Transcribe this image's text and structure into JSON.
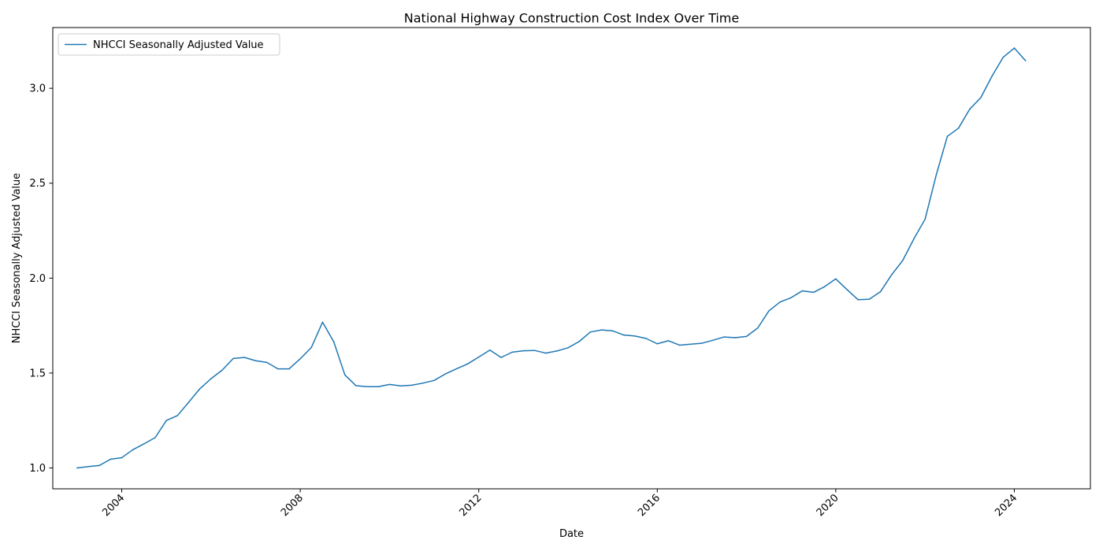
{
  "chart_data": {
    "type": "line",
    "title": "National Highway Construction Cost Index Over Time",
    "xlabel": "Date",
    "ylabel": "NHCCI Seasonally Adjusted Value",
    "xlim": [
      "2002-06-15",
      "2025-09-15"
    ],
    "ylim": [
      0.89,
      3.32
    ],
    "x_ticks": [
      "2004",
      "2008",
      "2012",
      "2016",
      "2020",
      "2024"
    ],
    "y_ticks": [
      "1.0",
      "1.5",
      "2.0",
      "2.5",
      "3.0"
    ],
    "grid": false,
    "legend_position": "top-left",
    "series": [
      {
        "name": "NHCCI Seasonally Adjusted Value",
        "color": "#1f77b4",
        "x": [
          "2003-01",
          "2003-04",
          "2003-07",
          "2003-10",
          "2004-01",
          "2004-04",
          "2004-07",
          "2004-10",
          "2005-01",
          "2005-04",
          "2005-07",
          "2005-10",
          "2006-01",
          "2006-04",
          "2006-07",
          "2006-10",
          "2007-01",
          "2007-04",
          "2007-07",
          "2007-10",
          "2008-01",
          "2008-04",
          "2008-07",
          "2008-10",
          "2009-01",
          "2009-04",
          "2009-07",
          "2009-10",
          "2010-01",
          "2010-04",
          "2010-07",
          "2010-10",
          "2011-01",
          "2011-04",
          "2011-07",
          "2011-10",
          "2012-01",
          "2012-04",
          "2012-07",
          "2012-10",
          "2013-01",
          "2013-04",
          "2013-07",
          "2013-10",
          "2014-01",
          "2014-04",
          "2014-07",
          "2014-10",
          "2015-01",
          "2015-04",
          "2015-07",
          "2015-10",
          "2016-01",
          "2016-04",
          "2016-07",
          "2016-10",
          "2017-01",
          "2017-04",
          "2017-07",
          "2017-10",
          "2018-01",
          "2018-04",
          "2018-07",
          "2018-10",
          "2019-01",
          "2019-04",
          "2019-07",
          "2019-10",
          "2020-01",
          "2020-04",
          "2020-07",
          "2020-10",
          "2021-01",
          "2021-04",
          "2021-07",
          "2021-10",
          "2022-01",
          "2022-04",
          "2022-07",
          "2022-10",
          "2023-01",
          "2023-04",
          "2023-07",
          "2023-10",
          "2024-01",
          "2024-04"
        ],
        "values": [
          1.0,
          1.007,
          1.013,
          1.046,
          1.054,
          1.096,
          1.127,
          1.16,
          1.25,
          1.276,
          1.346,
          1.417,
          1.47,
          1.515,
          1.577,
          1.582,
          1.565,
          1.556,
          1.522,
          1.522,
          1.575,
          1.635,
          1.768,
          1.665,
          1.49,
          1.433,
          1.428,
          1.428,
          1.44,
          1.432,
          1.436,
          1.447,
          1.461,
          1.495,
          1.522,
          1.548,
          1.584,
          1.621,
          1.582,
          1.61,
          1.617,
          1.619,
          1.605,
          1.616,
          1.633,
          1.666,
          1.716,
          1.727,
          1.722,
          1.7,
          1.695,
          1.682,
          1.654,
          1.67,
          1.647,
          1.652,
          1.657,
          1.673,
          1.69,
          1.686,
          1.693,
          1.737,
          1.827,
          1.874,
          1.897,
          1.933,
          1.925,
          1.955,
          1.996,
          1.94,
          1.886,
          1.889,
          1.928,
          2.017,
          2.093,
          2.207,
          2.31,
          2.543,
          2.747,
          2.79,
          2.89,
          2.951,
          3.064,
          3.163,
          3.212,
          3.146
        ]
      }
    ]
  }
}
